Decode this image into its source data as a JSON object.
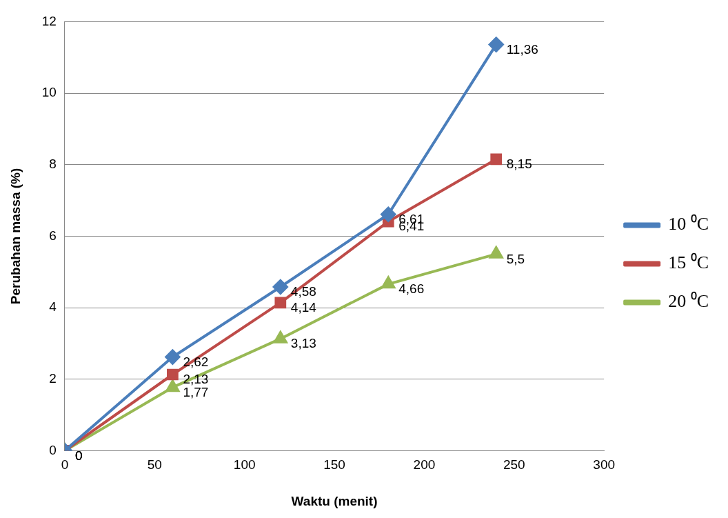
{
  "chart_data": {
    "type": "line",
    "xlabel": "Waktu (menit)",
    "ylabel": "Perubahan massa (%)",
    "xlim": [
      0,
      300
    ],
    "xticks": [
      0,
      50,
      100,
      150,
      200,
      250,
      300
    ],
    "ylim": [
      0,
      12
    ],
    "yticks": [
      0,
      2,
      4,
      6,
      8,
      10,
      12
    ],
    "grid": "y",
    "legend": "right",
    "series": [
      {
        "name": "10 ⁰C",
        "color": "#4a7ebb",
        "marker": "diamond",
        "x": [
          0,
          60,
          120,
          180,
          240
        ],
        "values": [
          0,
          2.62,
          4.58,
          6.61,
          11.36
        ],
        "value_labels": [
          "0",
          "2,62",
          "4,58",
          "6,61",
          "11,36"
        ]
      },
      {
        "name": "15 ⁰C",
        "color": "#be4b48",
        "marker": "square",
        "x": [
          0,
          60,
          120,
          180,
          240
        ],
        "values": [
          0,
          2.13,
          4.14,
          6.41,
          8.15
        ],
        "value_labels": [
          "0",
          "2,13",
          "4,14",
          "6,41",
          "8,15"
        ]
      },
      {
        "name": "20 ⁰C",
        "color": "#98b954",
        "marker": "triangle",
        "x": [
          0,
          60,
          120,
          180,
          240
        ],
        "values": [
          0,
          1.77,
          3.13,
          4.66,
          5.5
        ],
        "value_labels": [
          "0",
          "1,77",
          "3,13",
          "4,66",
          "5,5"
        ]
      }
    ]
  }
}
